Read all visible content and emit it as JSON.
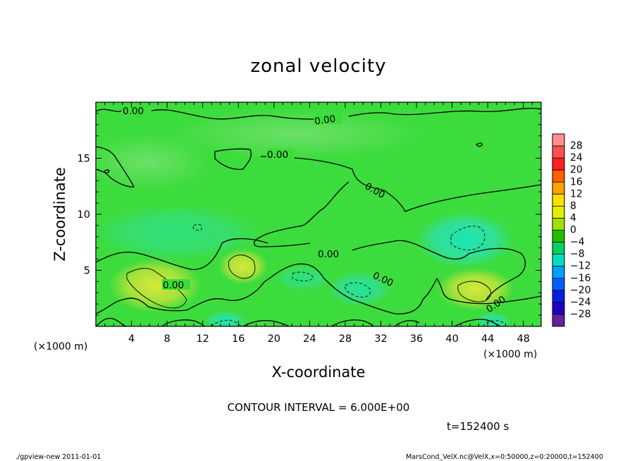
{
  "chart_data": {
    "type": "heatmap",
    "title": "zonal velocity",
    "xlabel": "X-coordinate",
    "ylabel": "Z-coordinate",
    "x_unit": "(×1000 m)",
    "y_unit": "(×1000 m)",
    "xlim": [
      0,
      50
    ],
    "ylim": [
      0,
      20
    ],
    "x_ticks": [
      4,
      8,
      12,
      16,
      20,
      24,
      28,
      32,
      36,
      40,
      44,
      48
    ],
    "y_ticks": [
      5,
      10,
      15
    ],
    "colorbar": {
      "levels": [
        28,
        24,
        20,
        16,
        12,
        8,
        4,
        0,
        -4,
        -8,
        -12,
        -16,
        -20,
        -24,
        -28
      ],
      "labels": [
        "28",
        "24",
        "20",
        "16",
        "12",
        "8",
        "4",
        "0",
        "−4",
        "−8",
        "−12",
        "−16",
        "−20",
        "−24",
        "−28"
      ],
      "colors": [
        "#ff8f8f",
        "#ff5050",
        "#ff2020",
        "#ff6000",
        "#ffa000",
        "#ffe000",
        "#e0f000",
        "#a0e000",
        "#20c000",
        "#00d060",
        "#00e0c0",
        "#00a0ff",
        "#0060ff",
        "#0020e0",
        "#2000c0",
        "#6020a0"
      ]
    },
    "contour_labels": [
      "0.00",
      "0.00",
      "0.00",
      "0.00",
      "0.00",
      "0.00",
      "0.00",
      "0.00",
      "0.00"
    ],
    "contour_interval": "CONTOUR INTERVAL = 6.000E+00",
    "time": "t=152400 s"
  },
  "footer": {
    "left": "./gpview-new  2011-01-01",
    "right": "MarsCond_VelX.nc@VelX,x=0:50000,z=0:20000,t=152400"
  },
  "colors": {
    "field_base": "#3ddc3d",
    "positive_blob": "#b8e63a",
    "negative_blob": "#2fe09a"
  }
}
